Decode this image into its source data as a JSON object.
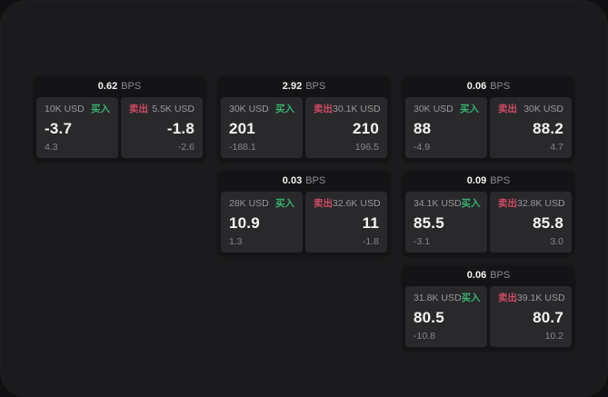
{
  "labels": {
    "buy": "买入",
    "sell": "卖出",
    "bps_unit": "BPS"
  },
  "colors": {
    "panel_bg": "#1b1b1d",
    "card_bg": "#141416",
    "tile_bg": "#29292c",
    "buy_green": "#35b36b",
    "sell_red": "#cf4a62",
    "text_primary": "#f5f5f6",
    "text_muted": "#8b8b8f"
  },
  "cards": [
    {
      "col": 1,
      "row": 1,
      "bps": "0.62",
      "buy": {
        "size": "10K USD",
        "price": "-3.7",
        "delta": "4.3"
      },
      "sell": {
        "size": "5.5K USD",
        "price": "-1.8",
        "delta": "-2.6"
      }
    },
    {
      "col": 2,
      "row": 1,
      "bps": "2.92",
      "buy": {
        "size": "30K USD",
        "price": "201",
        "delta": "-188.1"
      },
      "sell": {
        "size": "30.1K USD",
        "price": "210",
        "delta": "196.5"
      }
    },
    {
      "col": 3,
      "row": 1,
      "bps": "0.06",
      "buy": {
        "size": "30K USD",
        "price": "88",
        "delta": "-4.9"
      },
      "sell": {
        "size": "30K USD",
        "price": "88.2",
        "delta": "4.7"
      }
    },
    {
      "col": 2,
      "row": 2,
      "bps": "0.03",
      "buy": {
        "size": "28K USD",
        "price": "10.9",
        "delta": "1.3"
      },
      "sell": {
        "size": "32.6K USD",
        "price": "11",
        "delta": "-1.8"
      }
    },
    {
      "col": 3,
      "row": 2,
      "bps": "0.09",
      "buy": {
        "size": "34.1K USD",
        "price": "85.5",
        "delta": "-3.1"
      },
      "sell": {
        "size": "32.8K USD",
        "price": "85.8",
        "delta": "3.0"
      }
    },
    {
      "col": 3,
      "row": 3,
      "bps": "0.06",
      "buy": {
        "size": "31.8K USD",
        "price": "80.5",
        "delta": "-10.8"
      },
      "sell": {
        "size": "39.1K USD",
        "price": "80.7",
        "delta": "10.2"
      }
    }
  ]
}
